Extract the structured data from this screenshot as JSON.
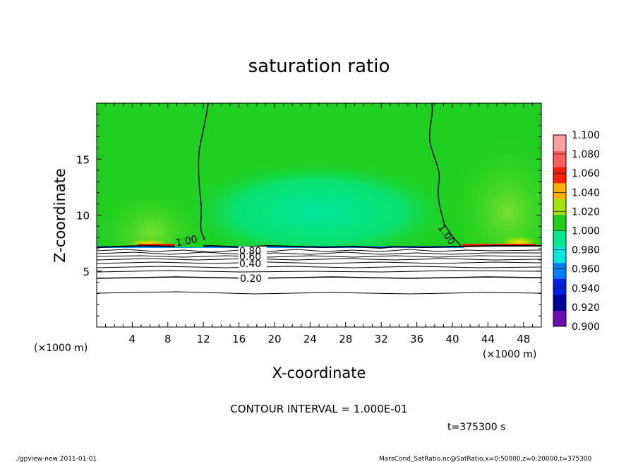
{
  "chart_data": {
    "type": "heatmap",
    "title": "saturation ratio",
    "xlabel": "X-coordinate",
    "ylabel": "Z-coordinate",
    "x_unit": "(×1000 m)",
    "y_unit": "(×1000 m)",
    "xlim": [
      0,
      50
    ],
    "ylim": [
      0,
      20
    ],
    "x_ticks": [
      "4",
      "8",
      "12",
      "16",
      "20",
      "24",
      "28",
      "32",
      "36",
      "40",
      "44",
      "48"
    ],
    "y_ticks": [
      "5",
      "10",
      "15"
    ],
    "colorbar": {
      "levels": [
        "0.900",
        "0.920",
        "0.940",
        "0.960",
        "0.980",
        "1.000",
        "1.020",
        "1.040",
        "1.060",
        "1.080",
        "1.100"
      ],
      "colors": [
        "#6a0db0",
        "#0000a0",
        "#0020e0",
        "#0080ff",
        "#00e8e0",
        "#00e890",
        "#20d020",
        "#a8e000",
        "#ffb000",
        "#ff2000",
        "#ff6060",
        "#ffa0a0"
      ]
    },
    "contour_labels": [
      "1.00",
      "1.00",
      "0.80",
      "0.60",
      "0.40",
      "0.20"
    ],
    "contour_interval_text": "CONTOUR INTERVAL = 1.000E-01",
    "time_text": "t=375300 s"
  },
  "footer": {
    "left": "./gpview-new   2011-01-01",
    "right": "MarsCond_SatRatio.nc@SatRatio,x=0:50000,z=0:20000,t=375300"
  }
}
